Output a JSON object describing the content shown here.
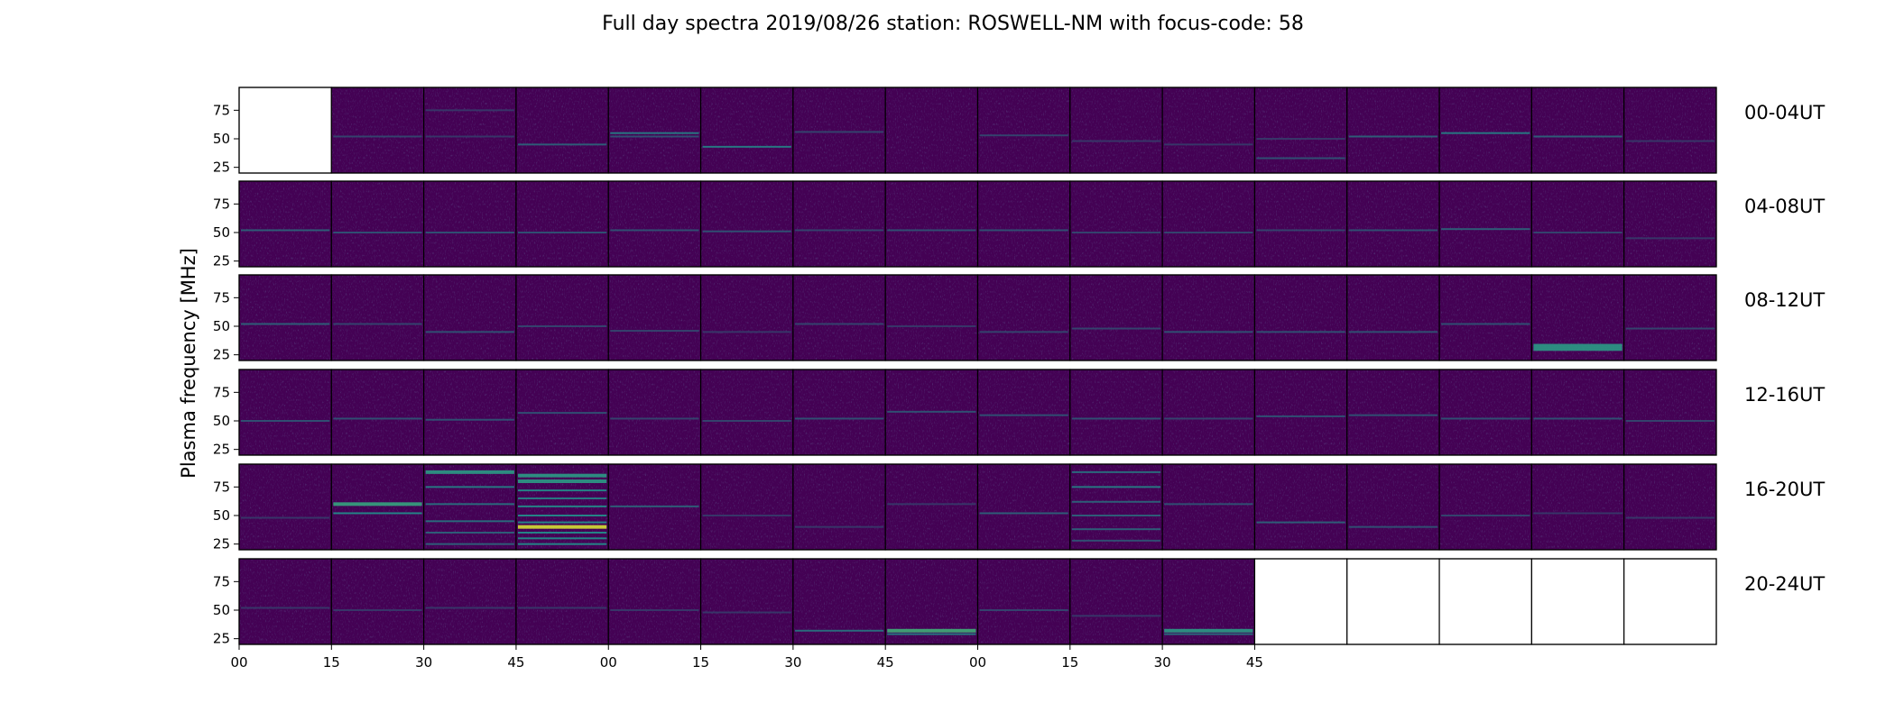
{
  "chart_data": {
    "type": "heatmap",
    "title": "Full day spectra 2019/08/26 station: ROSWELL-NM with focus-code: 58",
    "ylabel": "Plasma frequency [MHz]",
    "ylim": [
      20,
      95
    ],
    "yticks": [
      25,
      50,
      75
    ],
    "xticks": [
      "00",
      "15",
      "30",
      "45",
      "00",
      "15",
      "30",
      "45",
      "00",
      "15",
      "30",
      "45"
    ],
    "colormap": "viridis",
    "colors": {
      "background": "#440154",
      "mid": "#21918c",
      "high": "#5ec962",
      "peak": "#fde725",
      "empty": "#ffffff"
    },
    "rows": [
      {
        "label": "00-04UT",
        "cells": [
          {
            "empty": true
          },
          {
            "lines": [
              [
                52,
                0.25
              ]
            ]
          },
          {
            "lines": [
              [
                75,
                0.2
              ],
              [
                52,
                0.2
              ]
            ]
          },
          {
            "lines": [
              [
                45,
                0.35
              ]
            ]
          },
          {
            "lines": [
              [
                55,
                0.45
              ],
              [
                52,
                0.3
              ]
            ]
          },
          {
            "lines": [
              [
                43,
                0.45
              ]
            ]
          },
          {
            "lines": [
              [
                56,
                0.25
              ]
            ]
          },
          {
            "lines": []
          },
          {
            "lines": [
              [
                53,
                0.25
              ]
            ]
          },
          {
            "lines": [
              [
                48,
                0.2
              ]
            ]
          },
          {
            "lines": [
              [
                45,
                0.2
              ]
            ]
          },
          {
            "lines": [
              [
                33,
                0.3
              ],
              [
                50,
                0.2
              ]
            ]
          },
          {
            "lines": [
              [
                52,
                0.35
              ]
            ]
          },
          {
            "lines": [
              [
                55,
                0.45
              ]
            ]
          },
          {
            "lines": [
              [
                52,
                0.35
              ]
            ]
          },
          {
            "lines": [
              [
                48,
                0.2
              ]
            ]
          }
        ]
      },
      {
        "label": "04-08UT",
        "cells": [
          {
            "lines": [
              [
                52,
                0.35
              ]
            ]
          },
          {
            "lines": [
              [
                50,
                0.3
              ]
            ]
          },
          {
            "lines": [
              [
                50,
                0.3
              ]
            ]
          },
          {
            "lines": [
              [
                50,
                0.3
              ]
            ]
          },
          {
            "lines": [
              [
                52,
                0.3
              ]
            ]
          },
          {
            "lines": [
              [
                51,
                0.3
              ]
            ]
          },
          {
            "lines": [
              [
                52,
                0.25
              ]
            ]
          },
          {
            "lines": [
              [
                52,
                0.3
              ]
            ]
          },
          {
            "lines": [
              [
                52,
                0.3
              ]
            ]
          },
          {
            "lines": [
              [
                50,
                0.25
              ]
            ]
          },
          {
            "lines": [
              [
                50,
                0.25
              ]
            ]
          },
          {
            "lines": [
              [
                52,
                0.25
              ]
            ]
          },
          {
            "lines": [
              [
                52,
                0.3
              ]
            ]
          },
          {
            "lines": [
              [
                53,
                0.35
              ]
            ]
          },
          {
            "lines": [
              [
                50,
                0.25
              ]
            ]
          },
          {
            "lines": [
              [
                45,
                0.2
              ]
            ]
          }
        ]
      },
      {
        "label": "08-12UT",
        "cells": [
          {
            "lines": [
              [
                52,
                0.35
              ]
            ]
          },
          {
            "lines": [
              [
                52,
                0.25
              ]
            ]
          },
          {
            "lines": [
              [
                45,
                0.3
              ]
            ]
          },
          {
            "lines": [
              [
                50,
                0.25
              ]
            ]
          },
          {
            "lines": [
              [
                46,
                0.25
              ]
            ]
          },
          {
            "lines": [
              [
                45,
                0.2
              ]
            ]
          },
          {
            "lines": [
              [
                52,
                0.25
              ]
            ]
          },
          {
            "lines": [
              [
                50,
                0.2
              ]
            ]
          },
          {
            "lines": [
              [
                45,
                0.25
              ]
            ]
          },
          {
            "lines": [
              [
                48,
                0.25
              ]
            ]
          },
          {
            "lines": [
              [
                45,
                0.3
              ]
            ]
          },
          {
            "lines": [
              [
                45,
                0.3
              ]
            ]
          },
          {
            "lines": [
              [
                45,
                0.3
              ]
            ]
          },
          {
            "lines": [
              [
                52,
                0.3
              ]
            ]
          },
          {
            "lines": [
              [
                33,
                0.55
              ],
              [
                30,
                0.55
              ]
            ]
          },
          {
            "lines": [
              [
                48,
                0.25
              ]
            ]
          }
        ]
      },
      {
        "label": "12-16UT",
        "cells": [
          {
            "lines": [
              [
                50,
                0.3
              ]
            ]
          },
          {
            "lines": [
              [
                52,
                0.3
              ]
            ]
          },
          {
            "lines": [
              [
                51,
                0.3
              ]
            ]
          },
          {
            "lines": [
              [
                57,
                0.3
              ]
            ]
          },
          {
            "lines": [
              [
                52,
                0.25
              ]
            ]
          },
          {
            "lines": [
              [
                50,
                0.25
              ]
            ]
          },
          {
            "lines": [
              [
                52,
                0.3
              ]
            ]
          },
          {
            "lines": [
              [
                58,
                0.3
              ]
            ]
          },
          {
            "lines": [
              [
                55,
                0.3
              ]
            ]
          },
          {
            "lines": [
              [
                52,
                0.3
              ]
            ]
          },
          {
            "lines": [
              [
                52,
                0.25
              ]
            ]
          },
          {
            "lines": [
              [
                54,
                0.3
              ]
            ]
          },
          {
            "lines": [
              [
                55,
                0.3
              ]
            ]
          },
          {
            "lines": [
              [
                52,
                0.3
              ]
            ]
          },
          {
            "lines": [
              [
                52,
                0.3
              ]
            ]
          },
          {
            "lines": [
              [
                50,
                0.25
              ]
            ]
          }
        ]
      },
      {
        "label": "16-20UT",
        "cells": [
          {
            "lines": [
              [
                48,
                0.2
              ]
            ]
          },
          {
            "lines": [
              [
                60,
                0.6
              ],
              [
                52,
                0.5
              ]
            ]
          },
          {
            "lines": [
              [
                88,
                0.55
              ],
              [
                75,
                0.45
              ],
              [
                60,
                0.4
              ],
              [
                45,
                0.4
              ],
              [
                35,
                0.35
              ],
              [
                25,
                0.35
              ]
            ]
          },
          {
            "lines": [
              [
                85,
                0.55
              ],
              [
                80,
                0.55
              ],
              [
                72,
                0.5
              ],
              [
                65,
                0.45
              ],
              [
                58,
                0.5
              ],
              [
                50,
                0.5
              ],
              [
                44,
                0.5
              ],
              [
                40,
                0.95
              ],
              [
                35,
                0.5
              ],
              [
                30,
                0.5
              ],
              [
                25,
                0.5
              ]
            ]
          },
          {
            "lines": [
              [
                58,
                0.35
              ]
            ]
          },
          {
            "lines": [
              [
                50,
                0.2
              ]
            ]
          },
          {
            "lines": [
              [
                40,
                0.2
              ]
            ]
          },
          {
            "lines": [
              [
                60,
                0.2
              ]
            ]
          },
          {
            "lines": [
              [
                52,
                0.35
              ]
            ]
          },
          {
            "lines": [
              [
                88,
                0.4
              ],
              [
                75,
                0.45
              ],
              [
                62,
                0.35
              ],
              [
                50,
                0.35
              ],
              [
                38,
                0.35
              ],
              [
                28,
                0.3
              ]
            ]
          },
          {
            "lines": [
              [
                60,
                0.3
              ]
            ]
          },
          {
            "lines": [
              [
                44,
                0.35
              ]
            ]
          },
          {
            "lines": [
              [
                40,
                0.3
              ]
            ]
          },
          {
            "lines": [
              [
                50,
                0.25
              ]
            ]
          },
          {
            "lines": [
              [
                52,
                0.2
              ]
            ]
          },
          {
            "lines": [
              [
                48,
                0.2
              ]
            ]
          }
        ]
      },
      {
        "label": "20-24UT",
        "cells": [
          {
            "lines": [
              [
                52,
                0.2
              ]
            ]
          },
          {
            "lines": [
              [
                50,
                0.2
              ]
            ]
          },
          {
            "lines": [
              [
                52,
                0.2
              ]
            ]
          },
          {
            "lines": [
              [
                52,
                0.2
              ]
            ]
          },
          {
            "lines": [
              [
                50,
                0.2
              ]
            ]
          },
          {
            "lines": [
              [
                48,
                0.2
              ]
            ]
          },
          {
            "lines": [
              [
                32,
                0.4
              ]
            ]
          },
          {
            "lines": [
              [
                32,
                0.65
              ],
              [
                29,
                0.45
              ]
            ]
          },
          {
            "lines": [
              [
                50,
                0.25
              ]
            ]
          },
          {
            "lines": [
              [
                45,
                0.2
              ]
            ]
          },
          {
            "lines": [
              [
                32,
                0.55
              ],
              [
                29,
                0.4
              ]
            ]
          },
          {
            "empty": true
          },
          {
            "empty": true
          },
          {
            "empty": true
          },
          {
            "empty": true
          },
          {
            "empty": true
          }
        ]
      }
    ]
  }
}
